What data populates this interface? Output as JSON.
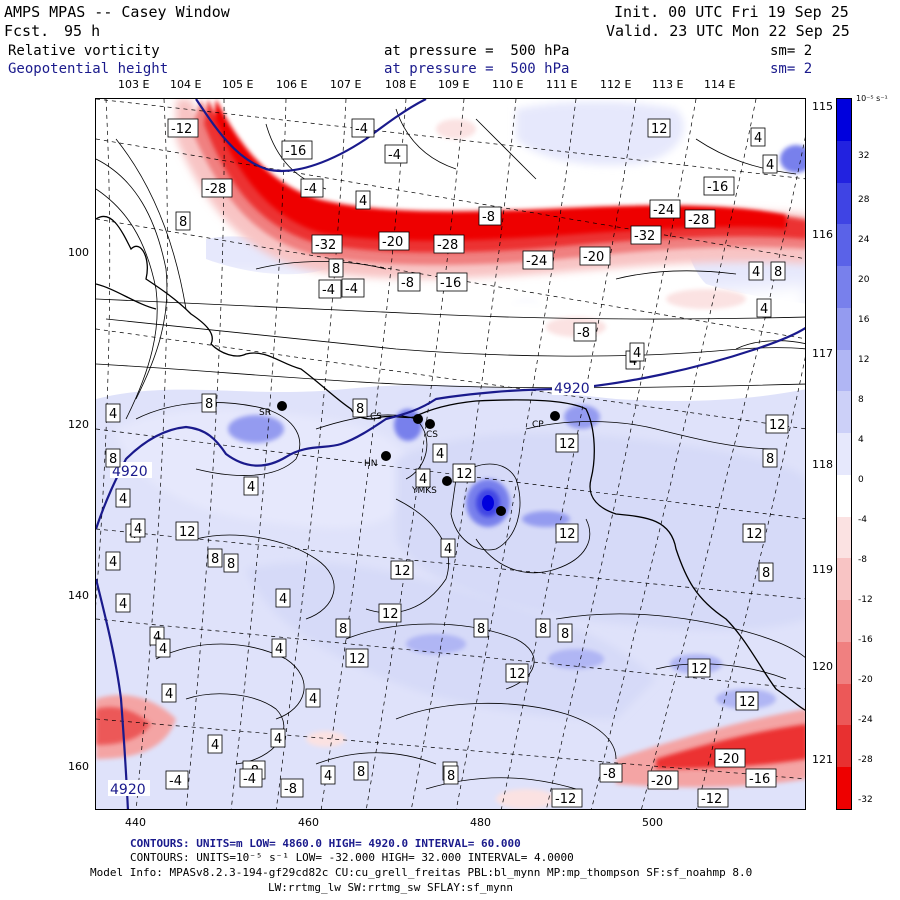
{
  "header": {
    "title": "AMPS MPAS -- Casey Window",
    "fcst_label": "Fcst.",
    "fcst_value": "95 h",
    "init": "Init. 00 UTC Fri 19 Sep 25",
    "valid": "Valid. 23 UTC Mon 22 Sep 25",
    "field1": "Relative vorticity",
    "field2": "Geopotential height",
    "pressure1": "at pressure =  500 hPa",
    "pressure2": "at pressure =  500 hPa",
    "sm1": "sm= 2",
    "sm2": "sm= 2"
  },
  "lon_labels": [
    "103 E",
    "104 E",
    "105 E",
    "106 E",
    "107 E",
    "108 E",
    "109 E",
    "110 E",
    "111 E",
    "112 E",
    "113 E",
    "114 E"
  ],
  "lat_labels": [
    "115 E",
    "116 E",
    "117 E",
    "118 E",
    "119 E",
    "120 E",
    "121 E"
  ],
  "x_axis": [
    "440",
    "460",
    "480",
    "500"
  ],
  "y_axis": [
    "100",
    "120",
    "140",
    "160"
  ],
  "colorbar": {
    "unit": "10⁻⁵ s⁻¹",
    "ticks": [
      "32",
      "28",
      "24",
      "20",
      "16",
      "12",
      "8",
      "4",
      "0",
      "-4",
      "-8",
      "-12",
      "-16",
      "-20",
      "-24",
      "-28",
      "-32"
    ],
    "colors": [
      "#0000dd",
      "#2222e0",
      "#3f44e4",
      "#5a62e8",
      "#7880ec",
      "#949bf0",
      "#b0b6f4",
      "#ccd0f8",
      "#e6e8fc",
      "#ffffff",
      "#fbe2e2",
      "#f8c4c4",
      "#f4a4a4",
      "#f08080",
      "#ec5858",
      "#e83030",
      "#ee0000"
    ]
  },
  "stations": [
    "SR",
    "CS",
    "CS",
    "HN",
    "YMKS",
    "CP"
  ],
  "contour_labels_height": [
    "4920",
    "4920",
    "4920"
  ],
  "contour_labels_vort": [
    "-12",
    "-16",
    "-4",
    "-4",
    "-4",
    "-28",
    "8",
    "4",
    "-32",
    "-20",
    "-28",
    "-8",
    "-24",
    "-20",
    "-32",
    "-24",
    "-28",
    "-16",
    "12",
    "4",
    "4",
    "8",
    "4",
    "4",
    "8",
    "-16",
    "-8",
    "-4",
    "-4",
    "-8",
    "4",
    "4",
    "4",
    "8",
    "8",
    "4",
    "4",
    "12",
    "8",
    "12",
    "4",
    "12",
    "12",
    "12",
    "8",
    "12",
    "8",
    "4",
    "8",
    "4",
    "4",
    "4",
    "12",
    "12",
    "12",
    "12",
    "8",
    "8",
    "12",
    "12",
    "4",
    "4",
    "8",
    "8",
    "-4",
    "-8",
    "-4",
    "-8",
    "4",
    "8",
    "-12",
    "-8",
    "-20",
    "-12",
    "-20",
    "-16",
    "4",
    "4",
    "4",
    "4",
    "4",
    "8",
    "8",
    "4",
    "4",
    "8",
    "4"
  ],
  "footer": {
    "line1": "CONTOURS:  UNITS=m  LOW=  4860.0          HIGH=  4920.0        INTERVAL=   60.000",
    "line2": "CONTOURS:  UNITS=10⁻⁵ s⁻¹  LOW=  -32.000        HIGH=  32.000        INTERVAL=   4.0000",
    "line3": "Model Info: MPASv8.2.3-194-gf29cd82c CU:cu_grell_freitas PBL:bl_mynn MP:mp_thompson SF:sf_noahmp 8.0",
    "line4": "LW:rrtmg_lw SW:rrtmg_sw SFLAY:sf_mynn"
  }
}
